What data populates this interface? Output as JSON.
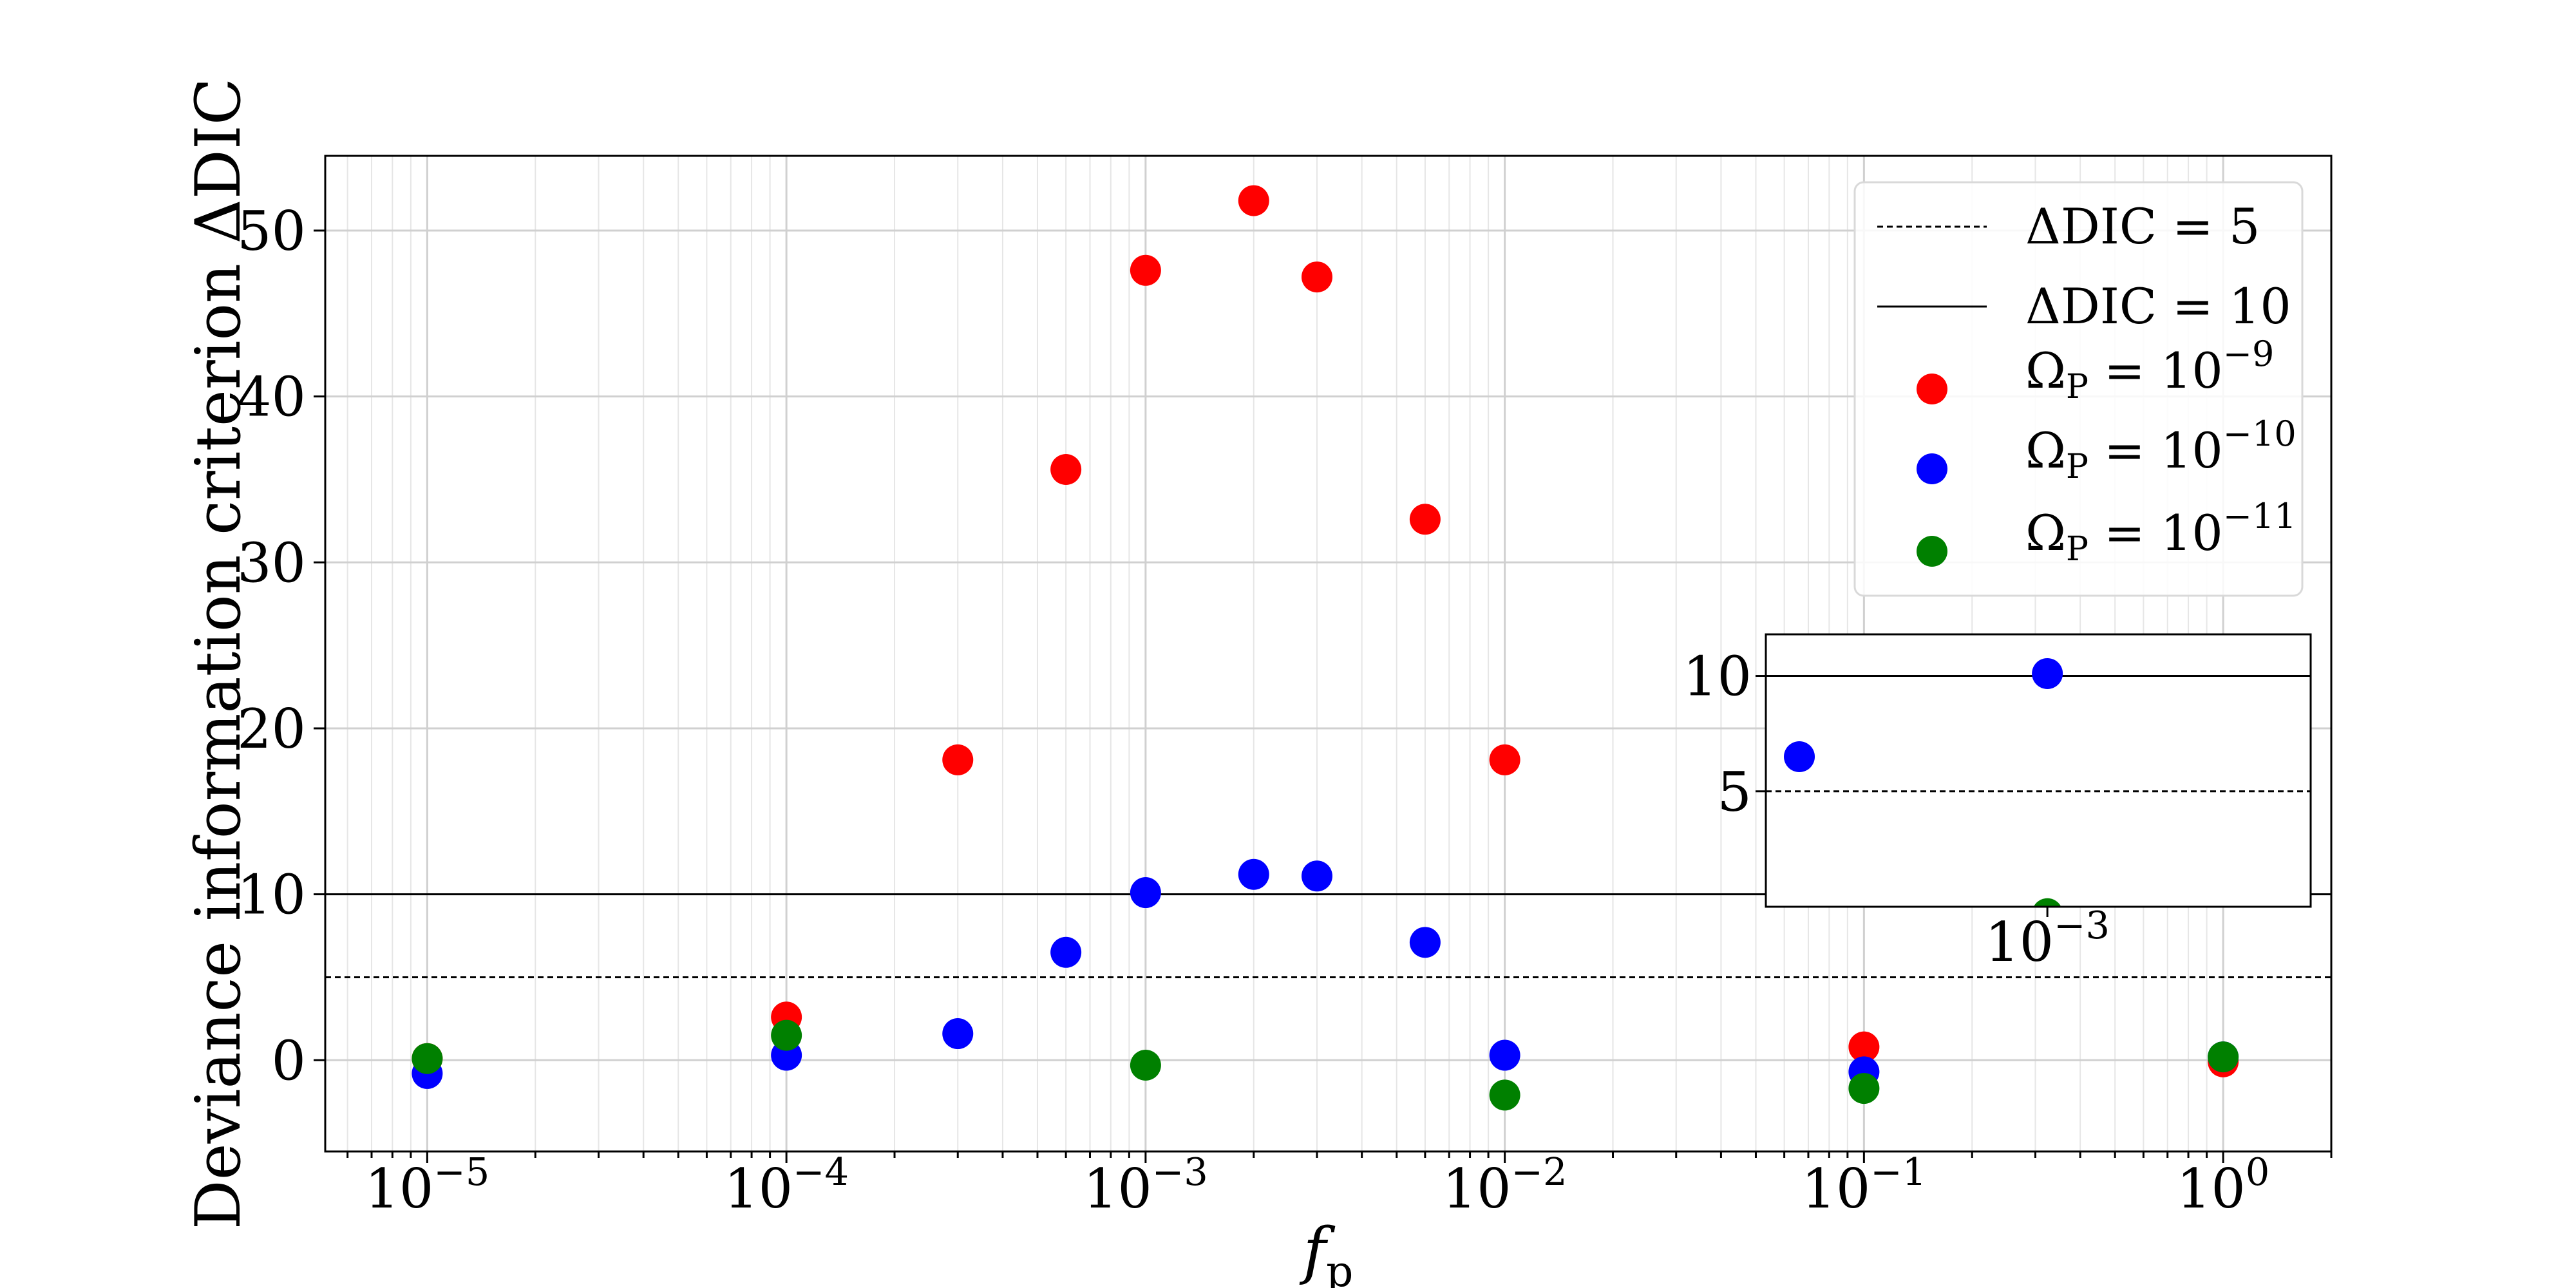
{
  "chart_data": {
    "type": "scatter",
    "title": "",
    "xlabel": "f",
    "xlabel_sub": "p",
    "ylabel": "Deviance information criterion ΔDIC",
    "x_scale": "log",
    "xlim": [
      5.2e-06,
      2.0
    ],
    "ylim": [
      -5.5,
      54.5
    ],
    "x_ticks": [
      {
        "value": 1e-05,
        "base": "10",
        "exp": "−5"
      },
      {
        "value": 0.0001,
        "base": "10",
        "exp": "−4"
      },
      {
        "value": 0.001,
        "base": "10",
        "exp": "−3"
      },
      {
        "value": 0.01,
        "base": "10",
        "exp": "−2"
      },
      {
        "value": 0.1,
        "base": "10",
        "exp": "−1"
      },
      {
        "value": 1,
        "base": "10",
        "exp": "0"
      }
    ],
    "y_ticks": [
      0,
      10,
      20,
      30,
      40,
      50
    ],
    "grid": true,
    "hlines": [
      {
        "y": 5,
        "style": "dashed",
        "label": "ΔDIC = 5"
      },
      {
        "y": 10,
        "style": "solid",
        "label": "ΔDIC = 10"
      }
    ],
    "series": [
      {
        "name_base": "Ω",
        "name_sub": "P",
        "name_rhs": " = 10",
        "name_exp": "−9",
        "color": "#ff0000",
        "x": [
          1e-05,
          0.0001,
          0.0003,
          0.0006,
          0.001,
          0.002,
          0.003,
          0.006,
          0.01,
          0.1,
          1
        ],
        "y": [
          0.1,
          2.6,
          18.1,
          35.6,
          47.6,
          51.8,
          47.2,
          32.6,
          18.1,
          0.8,
          -0.1
        ]
      },
      {
        "name_base": "Ω",
        "name_sub": "P",
        "name_rhs": " = 10",
        "name_exp": "−10",
        "color": "#0000ff",
        "x": [
          1e-05,
          0.0001,
          0.0003,
          0.0006,
          0.001,
          0.002,
          0.003,
          0.006,
          0.01,
          0.1,
          1
        ],
        "y": [
          -0.8,
          0.3,
          1.6,
          6.5,
          10.1,
          11.2,
          11.1,
          7.1,
          0.3,
          -0.7,
          0.2
        ]
      },
      {
        "name_base": "Ω",
        "name_sub": "P",
        "name_rhs": " = 10",
        "name_exp": "−11",
        "color": "#008000",
        "x": [
          1e-05,
          0.0001,
          0.001,
          0.01,
          0.1,
          1
        ],
        "y": [
          0.1,
          1.5,
          -0.3,
          -2.1,
          -1.7,
          0.2
        ]
      }
    ],
    "legend_position": "top-right",
    "inset": {
      "xlim": [
        0.00056,
        0.00172
      ],
      "ylim": [
        0,
        11.8
      ],
      "x_ticks": [
        {
          "value": 0.001,
          "base": "10",
          "exp": "−3"
        }
      ],
      "y_ticks": [
        5,
        10
      ],
      "position": "lower-right"
    }
  }
}
